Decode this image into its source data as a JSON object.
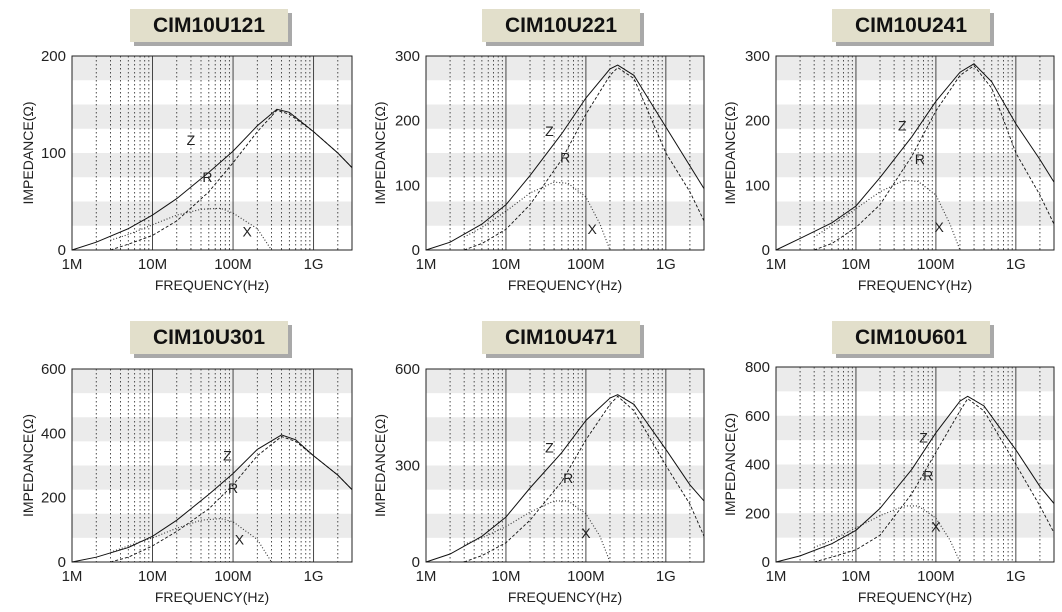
{
  "chart_data": [
    {
      "type": "line",
      "title": "CIM10U121",
      "xlabel": "FREQUENCY(Hz)",
      "ylabel": "IMPEDANCE(Ω)",
      "xscale": "log",
      "xlim": [
        1000000,
        3000000000
      ],
      "ylim": [
        0,
        200
      ],
      "yticks": [
        0,
        100,
        200
      ],
      "xticks": [
        {
          "value": 1000000,
          "label": "1M"
        },
        {
          "value": 10000000,
          "label": "10M"
        },
        {
          "value": 100000000,
          "label": "100M"
        },
        {
          "value": 1000000000,
          "label": "1G"
        }
      ],
      "grid": true,
      "series": [
        {
          "name": "Z",
          "style": "solid",
          "x": [
            1000000,
            2000000,
            5000000,
            10000000,
            20000000,
            50000000,
            100000000,
            200000000,
            350000000,
            500000000,
            1000000000,
            2000000000,
            3000000000
          ],
          "y": [
            0,
            8,
            22,
            36,
            53,
            80,
            102,
            128,
            145,
            142,
            122,
            100,
            85
          ]
        },
        {
          "name": "R",
          "style": "dashed",
          "x": [
            3000000,
            5000000,
            10000000,
            20000000,
            50000000,
            100000000,
            200000000,
            350000000,
            500000000,
            1000000000,
            2000000000,
            3000000000
          ],
          "y": [
            0,
            6,
            15,
            30,
            60,
            90,
            122,
            144,
            140,
            122,
            100,
            85
          ]
        },
        {
          "name": "X",
          "style": "dotted",
          "x": [
            3000000,
            5000000,
            10000000,
            20000000,
            40000000,
            70000000,
            100000000,
            200000000,
            300000000
          ],
          "y": [
            10,
            16,
            26,
            36,
            42,
            43,
            38,
            22,
            0
          ]
        }
      ],
      "annotations": [
        {
          "text": "Z",
          "x": 30000000,
          "y": 108
        },
        {
          "text": "R",
          "x": 48000000,
          "y": 70
        },
        {
          "text": "X",
          "x": 150000000,
          "y": 14
        }
      ]
    },
    {
      "type": "line",
      "title": "CIM10U221",
      "xlabel": "FREQUENCY(Hz)",
      "ylabel": "IMPEDANCE(Ω)",
      "xscale": "log",
      "xlim": [
        1000000,
        3000000000
      ],
      "ylim": [
        0,
        300
      ],
      "yticks": [
        0,
        100,
        200,
        300
      ],
      "xticks": [
        {
          "value": 1000000,
          "label": "1M"
        },
        {
          "value": 10000000,
          "label": "10M"
        },
        {
          "value": 100000000,
          "label": "100M"
        },
        {
          "value": 1000000000,
          "label": "1G"
        }
      ],
      "grid": true,
      "series": [
        {
          "name": "Z",
          "style": "solid",
          "x": [
            1000000,
            2000000,
            5000000,
            10000000,
            20000000,
            50000000,
            100000000,
            200000000,
            250000000,
            400000000,
            1000000000,
            2000000000,
            3000000000
          ],
          "y": [
            0,
            12,
            40,
            70,
            115,
            180,
            235,
            280,
            286,
            270,
            190,
            130,
            95
          ]
        },
        {
          "name": "R",
          "style": "dashed",
          "x": [
            3000000,
            5000000,
            10000000,
            20000000,
            50000000,
            100000000,
            200000000,
            250000000,
            400000000,
            1000000000,
            2000000000,
            3000000000
          ],
          "y": [
            0,
            10,
            32,
            70,
            140,
            210,
            270,
            282,
            265,
            150,
            90,
            45
          ]
        },
        {
          "name": "X",
          "style": "dotted",
          "x": [
            3000000,
            5000000,
            10000000,
            20000000,
            40000000,
            60000000,
            100000000,
            150000000,
            200000000
          ],
          "y": [
            20,
            35,
            60,
            88,
            105,
            103,
            82,
            40,
            0
          ]
        }
      ],
      "annotations": [
        {
          "text": "Z",
          "x": 35000000,
          "y": 176
        },
        {
          "text": "R",
          "x": 55000000,
          "y": 135
        },
        {
          "text": "X",
          "x": 120000000,
          "y": 25
        }
      ]
    },
    {
      "type": "line",
      "title": "CIM10U241",
      "xlabel": "FREQUENCY(Hz)",
      "ylabel": "IMPEDANCE(Ω)",
      "xscale": "log",
      "xlim": [
        1000000,
        3000000000
      ],
      "ylim": [
        0,
        300
      ],
      "yticks": [
        0,
        100,
        200,
        300
      ],
      "xticks": [
        {
          "value": 1000000,
          "label": "1M"
        },
        {
          "value": 10000000,
          "label": "10M"
        },
        {
          "value": 100000000,
          "label": "100M"
        },
        {
          "value": 1000000000,
          "label": "1G"
        }
      ],
      "grid": true,
      "series": [
        {
          "name": "Z",
          "style": "solid",
          "x": [
            1000000,
            2000000,
            5000000,
            10000000,
            20000000,
            50000000,
            100000000,
            200000000,
            300000000,
            500000000,
            1000000000,
            2000000000,
            3000000000
          ],
          "y": [
            0,
            18,
            42,
            68,
            112,
            175,
            230,
            275,
            288,
            260,
            195,
            140,
            105
          ]
        },
        {
          "name": "R",
          "style": "dashed",
          "x": [
            3000000,
            5000000,
            10000000,
            20000000,
            50000000,
            100000000,
            200000000,
            300000000,
            500000000,
            1000000000,
            2000000000,
            3000000000
          ],
          "y": [
            0,
            10,
            35,
            70,
            145,
            215,
            270,
            285,
            250,
            150,
            85,
            40
          ]
        },
        {
          "name": "X",
          "style": "dotted",
          "x": [
            3000000,
            5000000,
            10000000,
            20000000,
            40000000,
            60000000,
            100000000,
            150000000,
            200000000
          ],
          "y": [
            20,
            38,
            64,
            90,
            108,
            106,
            85,
            40,
            0
          ]
        }
      ],
      "annotations": [
        {
          "text": "Z",
          "x": 38000000,
          "y": 185
        },
        {
          "text": "R",
          "x": 63000000,
          "y": 133
        },
        {
          "text": "X",
          "x": 110000000,
          "y": 28
        }
      ]
    },
    {
      "type": "line",
      "title": "CIM10U301",
      "xlabel": "FREQUENCY(Hz)",
      "ylabel": "IMPEDANCE(Ω)",
      "xscale": "log",
      "xlim": [
        1000000,
        3000000000
      ],
      "ylim": [
        0,
        600
      ],
      "yticks": [
        0,
        200,
        400,
        600
      ],
      "xticks": [
        {
          "value": 1000000,
          "label": "1M"
        },
        {
          "value": 10000000,
          "label": "10M"
        },
        {
          "value": 100000000,
          "label": "100M"
        },
        {
          "value": 1000000000,
          "label": "1G"
        }
      ],
      "grid": true,
      "series": [
        {
          "name": "Z",
          "style": "solid",
          "x": [
            1000000,
            2000000,
            5000000,
            10000000,
            20000000,
            50000000,
            100000000,
            200000000,
            400000000,
            600000000,
            1000000000,
            2000000000,
            3000000000
          ],
          "y": [
            0,
            15,
            45,
            80,
            130,
            210,
            275,
            350,
            395,
            380,
            330,
            270,
            225
          ]
        },
        {
          "name": "R",
          "style": "dashed",
          "x": [
            3000000,
            5000000,
            10000000,
            20000000,
            50000000,
            100000000,
            200000000,
            400000000,
            600000000,
            1000000000,
            2000000000,
            3000000000
          ],
          "y": [
            0,
            15,
            50,
            95,
            165,
            240,
            330,
            390,
            375,
            330,
            270,
            225
          ]
        },
        {
          "name": "X",
          "style": "dotted",
          "x": [
            3000000,
            5000000,
            10000000,
            20000000,
            40000000,
            70000000,
            100000000,
            200000000,
            300000000
          ],
          "y": [
            30,
            50,
            75,
            105,
            130,
            135,
            125,
            70,
            0
          ]
        }
      ],
      "annotations": [
        {
          "text": "Z",
          "x": 85000000,
          "y": 315
        },
        {
          "text": "R",
          "x": 100000000,
          "y": 215
        },
        {
          "text": "X",
          "x": 120000000,
          "y": 55
        }
      ]
    },
    {
      "type": "line",
      "title": "CIM10U471",
      "xlabel": "FREQUENCY(Hz)",
      "ylabel": "IMPEDANCE(Ω)",
      "xscale": "log",
      "xlim": [
        1000000,
        3000000000
      ],
      "ylim": [
        0,
        600
      ],
      "yticks": [
        0,
        300,
        600
      ],
      "xticks": [
        {
          "value": 1000000,
          "label": "1M"
        },
        {
          "value": 10000000,
          "label": "10M"
        },
        {
          "value": 100000000,
          "label": "100M"
        },
        {
          "value": 1000000000,
          "label": "1G"
        }
      ],
      "grid": true,
      "series": [
        {
          "name": "Z",
          "style": "solid",
          "x": [
            1000000,
            2000000,
            5000000,
            10000000,
            20000000,
            50000000,
            100000000,
            200000000,
            250000000,
            400000000,
            1000000000,
            2000000000,
            3000000000
          ],
          "y": [
            0,
            25,
            80,
            140,
            230,
            340,
            440,
            510,
            520,
            490,
            350,
            240,
            190
          ]
        },
        {
          "name": "R",
          "style": "dashed",
          "x": [
            3000000,
            5000000,
            10000000,
            20000000,
            50000000,
            100000000,
            200000000,
            250000000,
            400000000,
            1000000000,
            2000000000,
            3000000000
          ],
          "y": [
            0,
            20,
            60,
            130,
            250,
            380,
            490,
            515,
            470,
            300,
            180,
            80
          ]
        },
        {
          "name": "X",
          "style": "dotted",
          "x": [
            3000000,
            5000000,
            10000000,
            20000000,
            40000000,
            60000000,
            100000000,
            150000000,
            200000000
          ],
          "y": [
            55,
            75,
            110,
            155,
            190,
            190,
            150,
            80,
            0
          ]
        }
      ],
      "annotations": [
        {
          "text": "Z",
          "x": 35000000,
          "y": 340
        },
        {
          "text": "R",
          "x": 60000000,
          "y": 245
        },
        {
          "text": "X",
          "x": 100000000,
          "y": 75
        }
      ]
    },
    {
      "type": "line",
      "title": "CIM10U601",
      "xlabel": "FREQUENCY(Hz)",
      "ylabel": "IMPEDANCE(Ω)",
      "xscale": "log",
      "xlim": [
        1000000,
        3000000000
      ],
      "ylim": [
        0,
        800
      ],
      "yticks": [
        0,
        200,
        400,
        600,
        800
      ],
      "xticks": [
        {
          "value": 1000000,
          "label": "1M"
        },
        {
          "value": 10000000,
          "label": "10M"
        },
        {
          "value": 100000000,
          "label": "100M"
        },
        {
          "value": 1000000000,
          "label": "1G"
        }
      ],
      "grid": true,
      "series": [
        {
          "name": "Z",
          "style": "solid",
          "x": [
            1000000,
            2000000,
            5000000,
            10000000,
            20000000,
            50000000,
            100000000,
            200000000,
            250000000,
            400000000,
            1000000000,
            2000000000,
            3000000000
          ],
          "y": [
            0,
            25,
            75,
            130,
            220,
            380,
            530,
            660,
            680,
            640,
            460,
            310,
            240
          ]
        },
        {
          "name": "R",
          "style": "dashed",
          "x": [
            3000000,
            5000000,
            10000000,
            20000000,
            50000000,
            100000000,
            200000000,
            250000000,
            400000000,
            1000000000,
            2000000000,
            3000000000
          ],
          "y": [
            0,
            20,
            50,
            110,
            280,
            450,
            620,
            670,
            620,
            400,
            230,
            120
          ]
        },
        {
          "name": "X",
          "style": "dotted",
          "x": [
            3000000,
            5000000,
            10000000,
            20000000,
            40000000,
            60000000,
            100000000,
            150000000,
            200000000
          ],
          "y": [
            60,
            90,
            140,
            190,
            230,
            230,
            180,
            90,
            0
          ]
        }
      ],
      "annotations": [
        {
          "text": "Z",
          "x": 70000000,
          "y": 490
        },
        {
          "text": "R",
          "x": 80000000,
          "y": 335
        },
        {
          "text": "X",
          "x": 100000000,
          "y": 125
        }
      ]
    }
  ]
}
